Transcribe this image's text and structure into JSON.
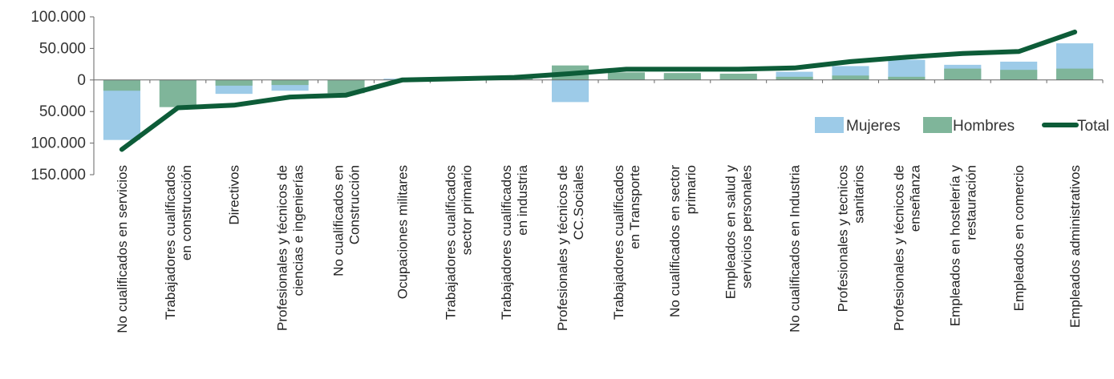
{
  "chart_data": {
    "type": "bar",
    "stacked": true,
    "categories": [
      [
        "No cualificados en servicios"
      ],
      [
        "Trabajadores cualificados",
        "en construcción"
      ],
      [
        "Directivos"
      ],
      [
        "Profesionales y técnicos de",
        "ciencias e ingenierías"
      ],
      [
        "No cualificados en",
        "Construcción"
      ],
      [
        "Ocupaciones militares"
      ],
      [
        "Trabajadores cualificados",
        "sector primario"
      ],
      [
        "Trabajadores cualificados",
        "en industria"
      ],
      [
        "Profesionales y técnicos de",
        "CC.Sociales"
      ],
      [
        "Trabajadores cualificados",
        "en Transporte"
      ],
      [
        "No cualificados en sector",
        "primario"
      ],
      [
        "Empleados en salud y",
        "servicios personales"
      ],
      [
        "No cualificados en Industria"
      ],
      [
        "Profesionales y tecnicos",
        "sanitarios"
      ],
      [
        "Profesionales y técnicos de",
        "enseñanza"
      ],
      [
        "Empleados en hostelería y",
        "restauración"
      ],
      [
        "Empleados en comercio"
      ],
      [
        "Empleados administrativos"
      ]
    ],
    "series": [
      {
        "name": "Mujeres",
        "kind": "bar",
        "color": "#9dcbe8",
        "values": [
          -95000,
          -3000,
          -22000,
          -17000,
          -3000,
          2000,
          1500,
          1500,
          -35000,
          6000,
          8000,
          8000,
          13000,
          22000,
          32000,
          24000,
          29000,
          58000
        ]
      },
      {
        "name": "Hombres",
        "kind": "bar",
        "color": "#7fb59a",
        "values": [
          -17000,
          -43000,
          -9000,
          -8000,
          -21000,
          0,
          1500,
          2500,
          23000,
          12000,
          11000,
          10000,
          5000,
          7000,
          5000,
          18000,
          16000,
          18000
        ]
      },
      {
        "name": "Total",
        "kind": "line",
        "color": "#0d5c38",
        "values": [
          -110000,
          -44000,
          -40000,
          -27000,
          -24000,
          0,
          2000,
          4000,
          10000,
          17000,
          17000,
          17000,
          19000,
          29000,
          36000,
          42000,
          45000,
          76000
        ]
      }
    ],
    "yticks": [
      {
        "value": 100000,
        "label": "100.000"
      },
      {
        "value": 50000,
        "label": "50.000"
      },
      {
        "value": 0,
        "label": "0"
      },
      {
        "value": -50000,
        "label": "50.000"
      },
      {
        "value": -100000,
        "label": "100.000"
      },
      {
        "value": -150000,
        "label": "150.000"
      }
    ],
    "ylim": [
      -150000,
      100000
    ],
    "legend_position": "right",
    "grid": false
  }
}
